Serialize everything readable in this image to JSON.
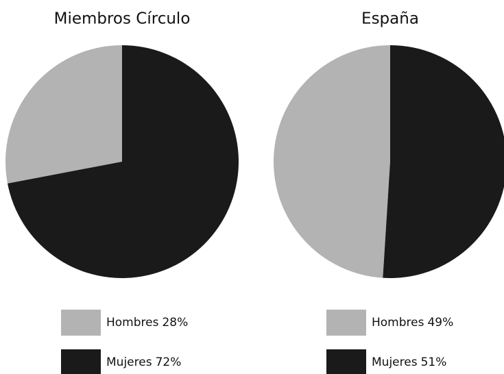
{
  "chart_data": [
    {
      "type": "pie",
      "title": "Miembros Círculo",
      "categories": [
        "Hombres",
        "Mujeres"
      ],
      "values": [
        28,
        72
      ],
      "value_labels": [
        "28%",
        "72%"
      ],
      "colors": [
        "#b3b3b3",
        "#1a1a1a"
      ]
    },
    {
      "type": "pie",
      "title": "España",
      "categories": [
        "Hombres",
        "Mujeres"
      ],
      "values": [
        49,
        51
      ],
      "value_labels": [
        "49%",
        "51%"
      ],
      "colors": [
        "#b3b3b3",
        "#1a1a1a"
      ]
    }
  ]
}
